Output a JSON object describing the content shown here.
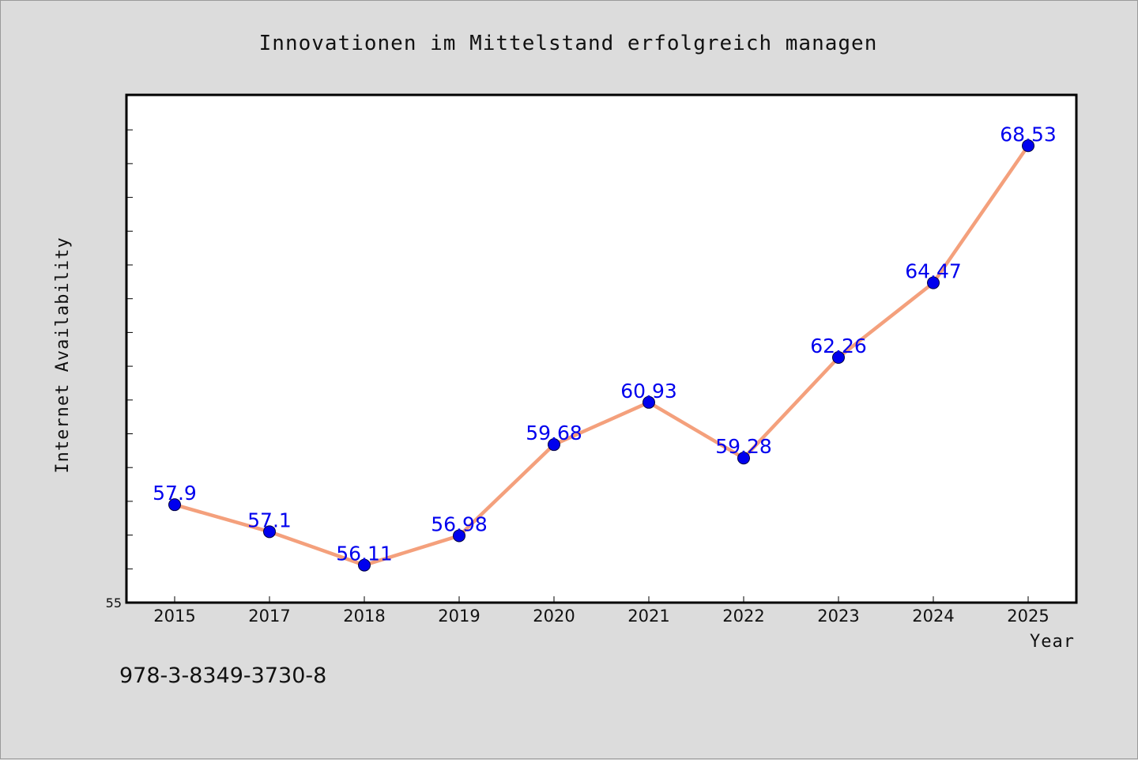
{
  "chart_data": {
    "type": "line",
    "title": "Innovationen im Mittelstand erfolgreich managen",
    "xlabel": "Year",
    "ylabel": "Internet Availability",
    "categories": [
      "2015",
      "2017",
      "2018",
      "2019",
      "2020",
      "2021",
      "2022",
      "2023",
      "2024",
      "2025"
    ],
    "series": [
      {
        "values": [
          57.9,
          57.1,
          56.11,
          56.98,
          59.68,
          60.93,
          59.28,
          62.26,
          64.47,
          68.53
        ],
        "labels": [
          "57.9",
          "57.1",
          "56.11",
          "56.98",
          "59.68",
          "60.93",
          "59.28",
          "62.26",
          "64.47",
          "68.53"
        ],
        "color": "#f4a07c",
        "marker_color": "#0000ee"
      }
    ],
    "ylim": [
      55,
      70
    ],
    "yticks": [
      {
        "value": 55,
        "label": "55"
      }
    ],
    "grid": false,
    "legend": "none",
    "label_color": "#0000ee"
  },
  "footer": {
    "isbn": "978-3-8349-3730-8"
  }
}
